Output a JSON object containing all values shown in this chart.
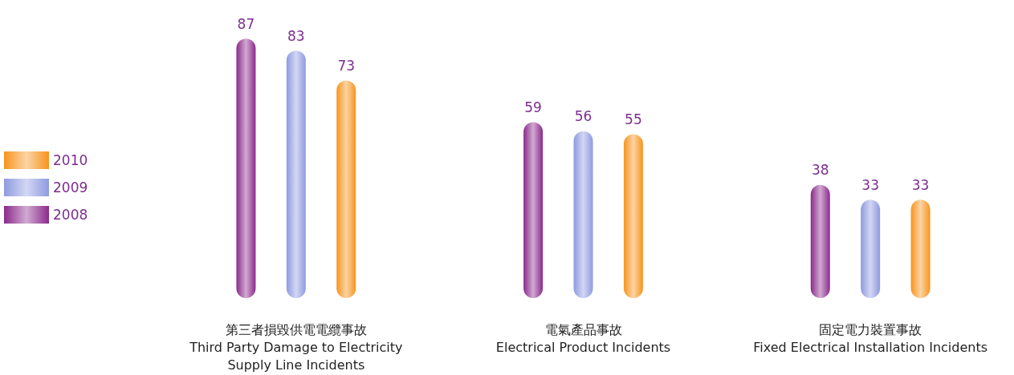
{
  "chart_data": {
    "type": "bar",
    "categories": [
      "第三者損毀供電電纜事故\nThird Party Damage to Electricity\nSupply Line Incidents",
      "電氣產品事故\nElectrical Product Incidents",
      "固定電力裝置事故\nFixed Electrical Installation Incidents"
    ],
    "series": [
      {
        "name": "2008",
        "color": "#8b2a8b",
        "values": [
          87,
          59,
          38
        ]
      },
      {
        "name": "2009",
        "color": "#8f9ae0",
        "values": [
          83,
          56,
          33
        ]
      },
      {
        "name": "2010",
        "color": "#f7941d",
        "values": [
          73,
          55,
          33
        ]
      }
    ],
    "data_labels": true,
    "legend": "left"
  }
}
